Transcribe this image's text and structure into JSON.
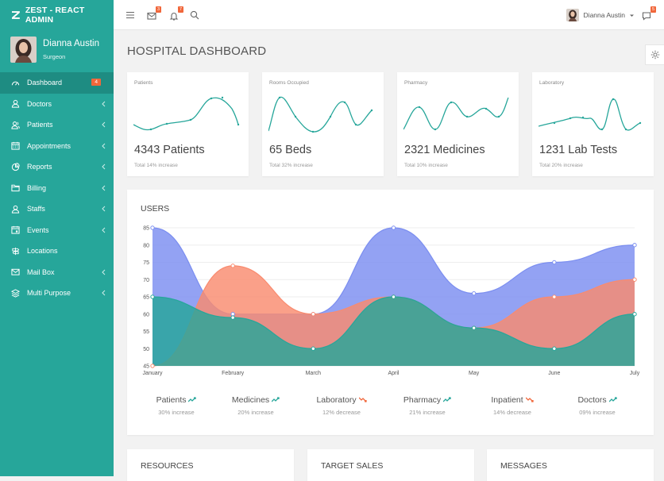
{
  "brand": {
    "name": "ZEST - REACT ADMIN"
  },
  "user": {
    "name": "Dianna Austin",
    "role": "Surgeon"
  },
  "sidebar": {
    "items": [
      {
        "label": "Dashboard",
        "icon": "gauge-icon",
        "badge": "4",
        "active": true
      },
      {
        "label": "Doctors",
        "icon": "user-icon"
      },
      {
        "label": "Patients",
        "icon": "users-icon"
      },
      {
        "label": "Appointments",
        "icon": "calendar-icon"
      },
      {
        "label": "Reports",
        "icon": "chart-pie-icon"
      },
      {
        "label": "Billing",
        "icon": "folder-icon"
      },
      {
        "label": "Staffs",
        "icon": "user-icon"
      },
      {
        "label": "Events",
        "icon": "calendar-event-icon"
      },
      {
        "label": "Locations",
        "icon": "signpost-icon"
      },
      {
        "label": "Mail Box",
        "icon": "mail-icon"
      },
      {
        "label": "Multi Purpose",
        "icon": "layers-icon"
      }
    ]
  },
  "topbar": {
    "mail_count": "3",
    "notif_count": "7",
    "chat_count": "5",
    "user_name": "Dianna Austin"
  },
  "page": {
    "title": "HOSPITAL DASHBOARD"
  },
  "stats": [
    {
      "label": "Patients",
      "value": "4343 Patients",
      "sub": "Total 14% increase"
    },
    {
      "label": "Rooms Occupied",
      "value": "65 Beds",
      "sub": "Total 32% increase"
    },
    {
      "label": "Pharmacy",
      "value": "2321 Medicines",
      "sub": "Total 10% increase"
    },
    {
      "label": "Laboratory",
      "value": "1231 Lab Tests",
      "sub": "Total 20% increase"
    }
  ],
  "users_card": {
    "title": "USERS"
  },
  "chart_data": {
    "type": "area",
    "categories": [
      "January",
      "February",
      "March",
      "April",
      "May",
      "June",
      "July"
    ],
    "ylim": [
      45,
      85
    ],
    "yticks": [
      "85",
      "80",
      "75",
      "70",
      "65",
      "60",
      "55",
      "50",
      "45"
    ],
    "series": [
      {
        "values": [
          85,
          60,
          60,
          85,
          66,
          75,
          80
        ],
        "color": "#7b8ef0"
      },
      {
        "values": [
          45,
          74,
          60,
          65,
          56,
          65,
          70
        ],
        "color": "#f98b6f"
      },
      {
        "values": [
          65,
          59,
          50,
          65,
          56,
          50,
          60
        ],
        "color": "#26a69a"
      }
    ]
  },
  "users_legend": [
    {
      "name": "Patients",
      "trend": "up",
      "text": "30% increase"
    },
    {
      "name": "Medicines",
      "trend": "up",
      "text": "20% increase"
    },
    {
      "name": "Laboratory",
      "trend": "down",
      "text": "12% decrease"
    },
    {
      "name": "Pharmacy",
      "trend": "up",
      "text": "21% increase"
    },
    {
      "name": "Inpatient",
      "trend": "down",
      "text": "14% decrease"
    },
    {
      "name": "Doctors",
      "trend": "up",
      "text": "09% increase"
    }
  ],
  "bottom_cards": [
    {
      "title": "RESOURCES"
    },
    {
      "title": "TARGET SALES"
    },
    {
      "title": "MESSAGES"
    }
  ],
  "colors": {
    "primary": "#26a69a",
    "badge": "#f1673b",
    "up": "#26a69a",
    "down": "#f1673b"
  }
}
